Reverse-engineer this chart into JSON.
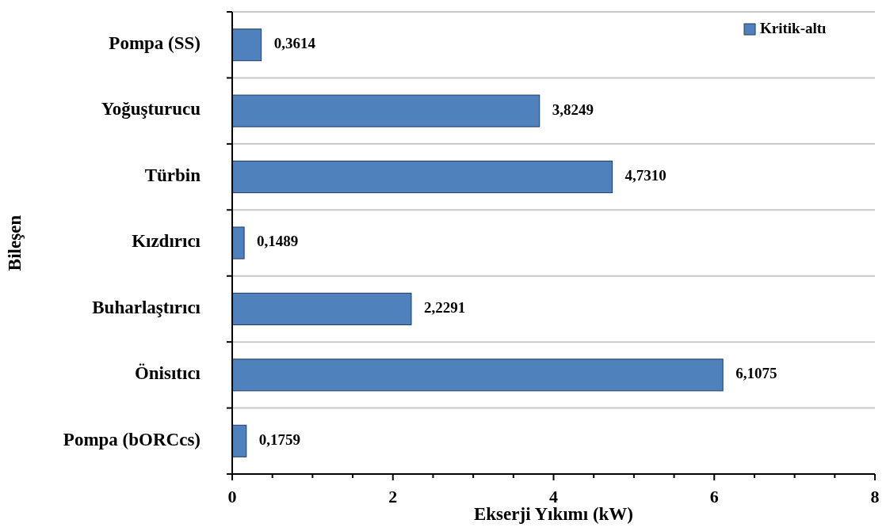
{
  "chart_data": {
    "type": "bar",
    "orientation": "horizontal",
    "xlabel": "Ekserji Yıkımı (kW)",
    "ylabel": "Bileşen",
    "categories": [
      "Pompa (SS)",
      "Yoğuşturucu",
      "Türbin",
      "Kızdırıcı",
      "Buharlaştırıcı",
      "Önisıtıcı",
      "Pompa (bORCcs)"
    ],
    "series": [
      {
        "name": "Kritik-altı",
        "color": "#4f81bd",
        "values": [
          0.3614,
          3.8249,
          4.731,
          0.1489,
          2.2291,
          6.1075,
          0.1759
        ],
        "value_labels": [
          "0,3614",
          "3,8249",
          "4,7310",
          "0,1489",
          "2,2291",
          "6,1075",
          "0,1759"
        ]
      }
    ],
    "xlim": [
      0,
      8
    ],
    "xticks": [
      0,
      {
        "value": 0.5,
        "label": null
      },
      {
        "value": 1,
        "label": null
      },
      {
        "value": 1.5,
        "label": null
      },
      2,
      {
        "value": 2.5,
        "label": null
      },
      {
        "value": 3,
        "label": null
      },
      {
        "value": 3.5,
        "label": null
      },
      4,
      {
        "value": 4.5,
        "label": null
      },
      {
        "value": 5,
        "label": null
      },
      {
        "value": 5.5,
        "label": null
      },
      6,
      {
        "value": 6.5,
        "label": null
      },
      {
        "value": 7,
        "label": null
      },
      {
        "value": 7.5,
        "label": null
      },
      8
    ],
    "grid": "y",
    "legend": "top right"
  }
}
